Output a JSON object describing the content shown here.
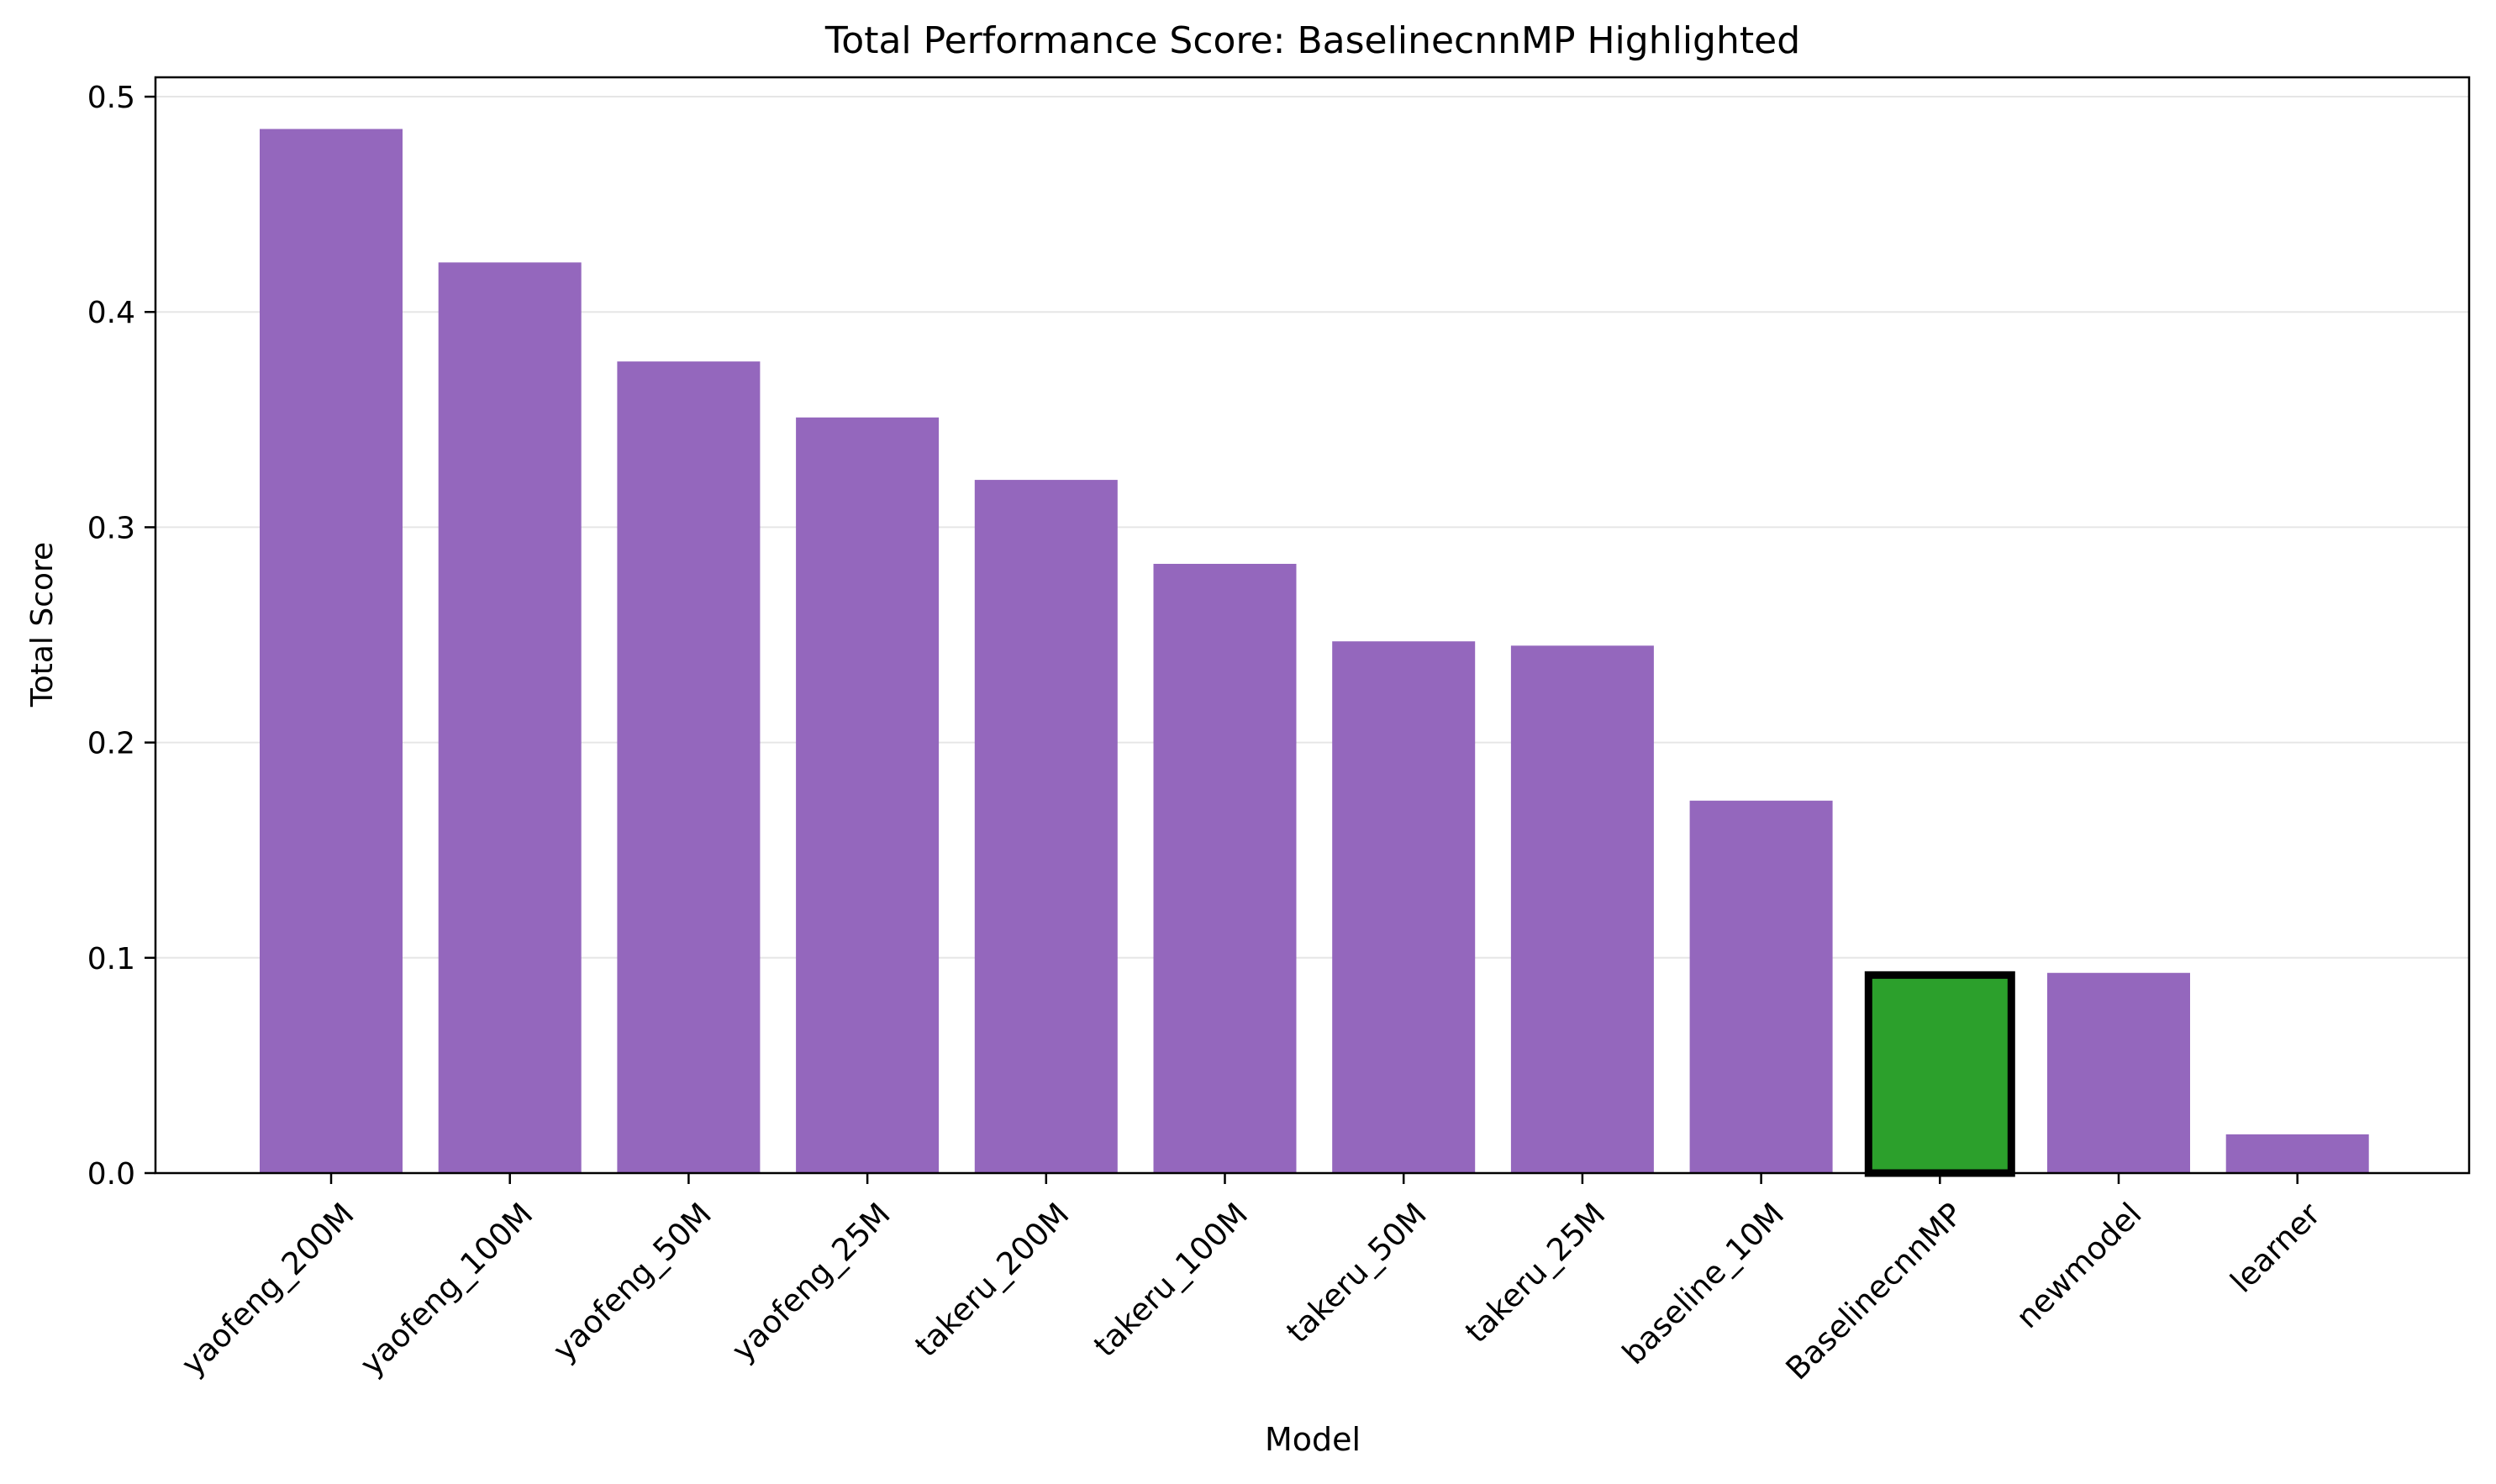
{
  "chart_data": {
    "type": "bar",
    "title": "Total Performance Score: BaselinecnnMP Highlighted",
    "xlabel": "Model",
    "ylabel": "Total Score",
    "ylim": [
      0,
      0.509
    ],
    "yticks": [
      0.0,
      0.1,
      0.2,
      0.3,
      0.4,
      0.5
    ],
    "ytick_labels": [
      "0.0",
      "0.1",
      "0.2",
      "0.3",
      "0.4",
      "0.5"
    ],
    "grid": "horizontal",
    "categories": [
      "yaofeng_200M",
      "yaofeng_100M",
      "yaofeng_50M",
      "yaofeng_25M",
      "takeru_200M",
      "takeru_100M",
      "takeru_50M",
      "takeru_25M",
      "baseline_10M",
      "BaselinecnnMP",
      "newmodel",
      "learner"
    ],
    "values": [
      0.485,
      0.423,
      0.377,
      0.351,
      0.322,
      0.283,
      0.247,
      0.245,
      0.173,
      0.092,
      0.093,
      0.018
    ],
    "highlight": "BaselinecnnMP",
    "colors": {
      "default_bar": "#9467bd",
      "highlight_bar": "#2ca02c",
      "highlight_edge": "#000000",
      "grid": "#e6e6e6",
      "axes": "#000000"
    }
  }
}
